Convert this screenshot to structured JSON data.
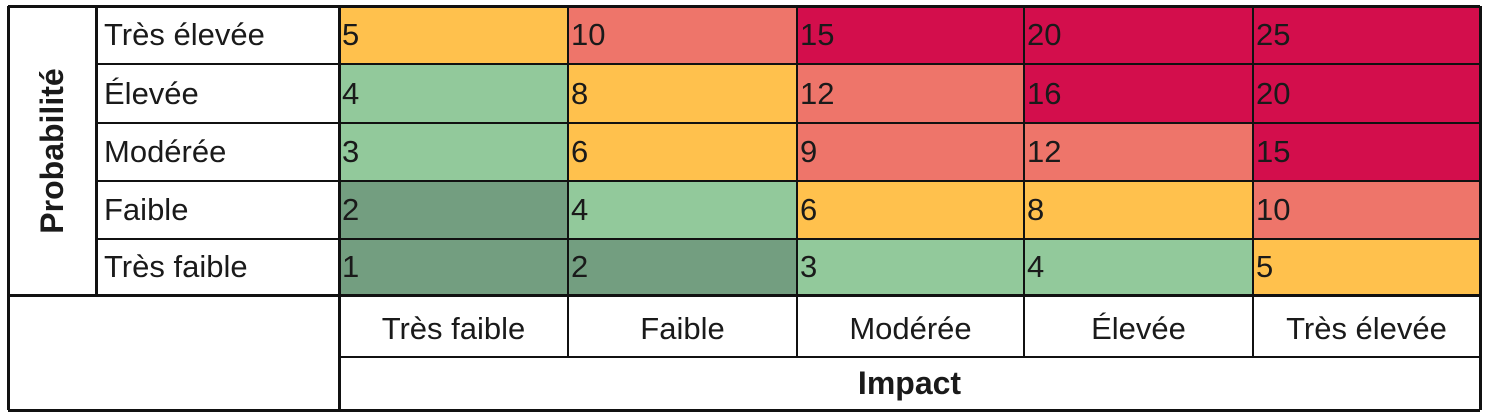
{
  "y_axis_title": "Probabilité",
  "x_axis_title": "Impact",
  "row_labels": [
    "Très élevée",
    "Élevée",
    "Modérée",
    "Faible",
    "Très faible"
  ],
  "col_labels": [
    "Très faible",
    "Faible",
    "Modérée",
    "Élevée",
    "Très élevée"
  ],
  "colors": {
    "dark_green": "#739e80",
    "light_green": "#92c99b",
    "amber": "#ffc14d",
    "salmon": "#ee756a",
    "crimson": "#d30e4c"
  },
  "cells": [
    [
      {
        "v": "5",
        "c": "amber"
      },
      {
        "v": "10",
        "c": "salmon"
      },
      {
        "v": "15",
        "c": "crimson"
      },
      {
        "v": "20",
        "c": "crimson"
      },
      {
        "v": "25",
        "c": "crimson"
      }
    ],
    [
      {
        "v": "4",
        "c": "light_green"
      },
      {
        "v": "8",
        "c": "amber"
      },
      {
        "v": "12",
        "c": "salmon"
      },
      {
        "v": "16",
        "c": "crimson"
      },
      {
        "v": "20",
        "c": "crimson"
      }
    ],
    [
      {
        "v": "3",
        "c": "light_green"
      },
      {
        "v": "6",
        "c": "amber"
      },
      {
        "v": "9",
        "c": "salmon"
      },
      {
        "v": "12",
        "c": "salmon"
      },
      {
        "v": "15",
        "c": "crimson"
      }
    ],
    [
      {
        "v": "2",
        "c": "dark_green"
      },
      {
        "v": "4",
        "c": "light_green"
      },
      {
        "v": "6",
        "c": "amber"
      },
      {
        "v": "8",
        "c": "amber"
      },
      {
        "v": "10",
        "c": "salmon"
      }
    ],
    [
      {
        "v": "1",
        "c": "dark_green"
      },
      {
        "v": "2",
        "c": "dark_green"
      },
      {
        "v": "3",
        "c": "light_green"
      },
      {
        "v": "4",
        "c": "light_green"
      },
      {
        "v": "5",
        "c": "amber"
      }
    ]
  ]
}
